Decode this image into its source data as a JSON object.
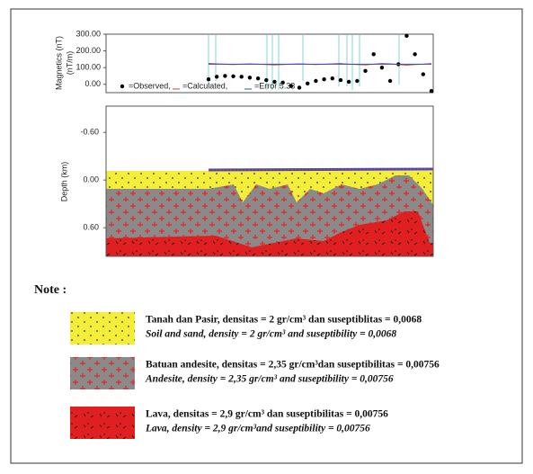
{
  "chart_data": [
    {
      "type": "line",
      "y_label": "Magnetics (nT)",
      "y_label2": "(nT/m)",
      "ylim": [
        -50,
        300
      ],
      "yticks": [
        {
          "value": 0,
          "label": "0.00"
        },
        {
          "value": 100,
          "label": "100.00"
        },
        {
          "value": 200,
          "label": "200.00"
        },
        {
          "value": 300,
          "label": "300.00"
        }
      ],
      "series": [
        {
          "name": "=Observed,",
          "color": "#000000",
          "values": [
            30,
            45,
            50,
            48,
            45,
            40,
            35,
            25,
            15,
            10,
            -10,
            -20,
            5,
            20,
            30,
            35,
            25,
            15,
            20,
            80,
            180,
            100,
            20,
            120,
            290,
            180,
            60,
            -40
          ]
        },
        {
          "name": "=Calculated,",
          "color": "#d04040",
          "values": [
            125,
            122,
            120,
            118,
            120,
            122,
            120,
            118,
            116,
            118,
            120,
            122,
            120,
            118,
            120,
            122,
            124,
            120,
            118,
            116,
            120,
            124,
            122,
            118,
            115,
            118,
            120,
            124
          ]
        },
        {
          "name": "=Error 5.33",
          "color": "#3050b0",
          "values": [
            120,
            120,
            120,
            120,
            120,
            120,
            120,
            120,
            120,
            120,
            120,
            120,
            120,
            120,
            120,
            120,
            120,
            120,
            120,
            120,
            120,
            120,
            120,
            120,
            120,
            120,
            120,
            120
          ]
        }
      ]
    },
    {
      "type": "section",
      "y_label": "Depth (km)",
      "ylim": [
        -0.93,
        0.96
      ],
      "yticks": [
        {
          "value": -0.6,
          "label": "-0.60"
        },
        {
          "value": 0,
          "label": "0.00"
        },
        {
          "value": 0.6,
          "label": "0.60"
        }
      ]
    }
  ],
  "note": {
    "title": "Note :",
    "items": [
      {
        "label": "Tanah dan Pasir, densitas = 2 gr/cm³ dan suseptiblitas = 0,0068",
        "label_en": "Soil and sand, density = 2 gr/cm³ and suseptibility = 0,0068",
        "color": "#f4ee3a"
      },
      {
        "label": "Batuan andesite, densitas = 2,35 gr/cm³dan suseptibilitas = 0,00756",
        "label_en": "Andesite, density = 2,35 gr/cm³ and suseptibility = 0,00756",
        "color": "#8a8a8a"
      },
      {
        "label": "Lava, densitas = 2,9 gr/cm³ dan suseptibilitas = 0,00756",
        "label_en": "Lava, density = 2,9 gr/cm³and suseptibility = 0,00756",
        "color": "#e02020"
      }
    ]
  }
}
